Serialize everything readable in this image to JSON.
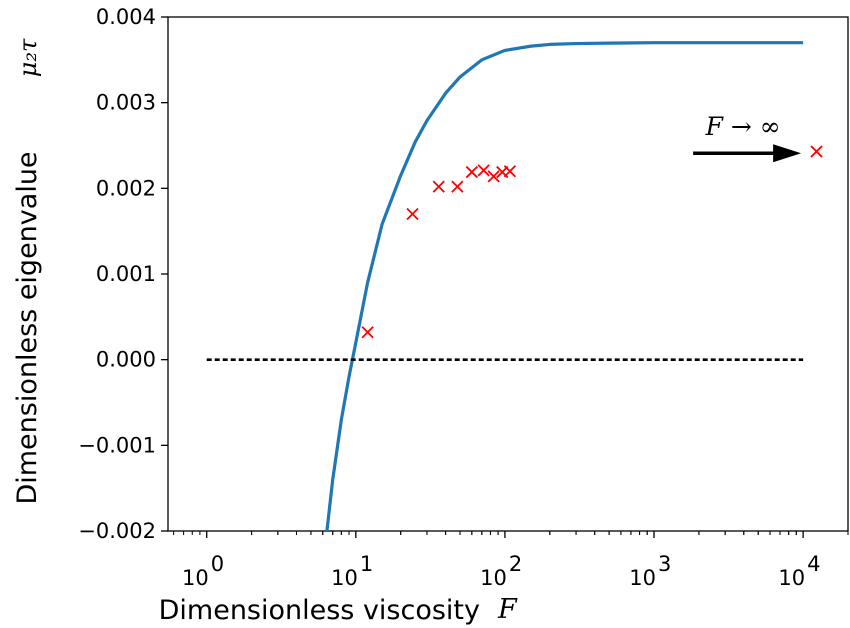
{
  "chart_data": {
    "type": "line",
    "xscale": "log",
    "xlim": [
      0.55,
      20000
    ],
    "ylim": [
      -0.002,
      0.004
    ],
    "xlabel": "Dimensionless viscosity",
    "xlabel_symbol": "F",
    "ylabel": "Dimensionless eigenvalue",
    "ylabel_symbol": "μ₂τ",
    "y_ticks": [
      {
        "value": -0.002,
        "label": "−0.002"
      },
      {
        "value": -0.001,
        "label": "−0.001"
      },
      {
        "value": 0.0,
        "label": "0.000"
      },
      {
        "value": 0.001,
        "label": "0.001"
      },
      {
        "value": 0.002,
        "label": "0.002"
      },
      {
        "value": 0.003,
        "label": "0.003"
      },
      {
        "value": 0.004,
        "label": "0.004"
      }
    ],
    "x_ticks": [
      {
        "value": 1,
        "base": "10",
        "exp": "0"
      },
      {
        "value": 10,
        "base": "10",
        "exp": "1"
      },
      {
        "value": 100,
        "base": "10",
        "exp": "2"
      },
      {
        "value": 1000,
        "base": "10",
        "exp": "3"
      },
      {
        "value": 10000,
        "base": "10",
        "exp": "4"
      }
    ],
    "series": [
      {
        "style": "solid",
        "color": "#1f77b4",
        "x": [
          6.4,
          7,
          8,
          9,
          10,
          12,
          15,
          20,
          25,
          30,
          40,
          50,
          70,
          100,
          150,
          200,
          300,
          500,
          1000,
          2000,
          5000,
          10000
        ],
        "y": [
          -0.002,
          -0.0014,
          -0.0007,
          -0.0002,
          0.0002,
          0.0009,
          0.00158,
          0.00215,
          0.00254,
          0.00279,
          0.00311,
          0.0033,
          0.0035,
          0.00361,
          0.00366,
          0.00368,
          0.00369,
          0.003695,
          0.0037,
          0.0037,
          0.0037,
          0.0037
        ]
      },
      {
        "style": "dashed",
        "color": "#000000",
        "x": [
          1,
          10000
        ],
        "y": [
          0,
          0
        ]
      },
      {
        "style": "markers",
        "marker": "x",
        "color": "#ff0000",
        "x": [
          12,
          24,
          36,
          48,
          60,
          72,
          84,
          96,
          108,
          12300
        ],
        "y": [
          0.00032,
          0.0017,
          0.00202,
          0.00202,
          0.00219,
          0.00221,
          0.00214,
          0.00219,
          0.0022,
          0.00243
        ]
      }
    ],
    "annotations": [
      {
        "text": "F → ∞",
        "arrow_to_x": 10000,
        "y": 0.00241
      }
    ]
  }
}
